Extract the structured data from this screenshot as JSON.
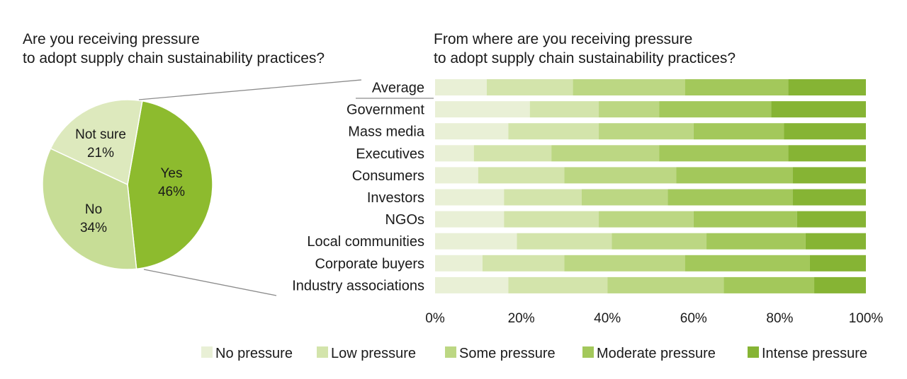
{
  "chart_data": [
    {
      "type": "pie",
      "title_lines": [
        "Are you receiving pressure",
        "to adopt supply chain sustainability practices?"
      ],
      "slices": [
        {
          "label": "Yes",
          "value": 46,
          "value_label": "46%",
          "color": "#8dbb2e"
        },
        {
          "label": "No",
          "value": 34,
          "value_label": "34%",
          "color": "#c7dd96"
        },
        {
          "label": "Not sure",
          "value": 21,
          "value_label": "21%",
          "color": "#dde9bd"
        }
      ]
    },
    {
      "type": "bar",
      "orientation": "horizontal",
      "stacked": true,
      "percent": true,
      "title_lines": [
        "From where are you receiving pressure",
        "to adopt supply chain sustainability practices?"
      ],
      "categories": [
        "Average",
        "Government",
        "Mass media",
        "Executives",
        "Consumers",
        "Investors",
        "NGOs",
        "Local communities",
        "Corporate buyers",
        "Industry associations"
      ],
      "xlim": [
        0,
        100
      ],
      "xticks": [
        0,
        20,
        40,
        60,
        80,
        100
      ],
      "xtick_labels": [
        "0%",
        "20%",
        "40%",
        "60%",
        "80%",
        "100%"
      ],
      "legend_position": "bottom",
      "series": [
        {
          "name": "No pressure",
          "color": "#e9f0d6",
          "values": [
            12,
            22,
            17,
            9,
            10,
            16,
            16,
            19,
            11,
            17
          ]
        },
        {
          "name": "Low pressure",
          "color": "#d3e4ab",
          "values": [
            20,
            16,
            21,
            18,
            20,
            18,
            22,
            22,
            19,
            23
          ]
        },
        {
          "name": "Some pressure",
          "color": "#bcd783",
          "values": [
            26,
            14,
            22,
            25,
            26,
            20,
            22,
            22,
            28,
            27
          ]
        },
        {
          "name": "Moderate pressure",
          "color": "#a3c85b",
          "values": [
            24,
            26,
            21,
            30,
            27,
            29,
            24,
            23,
            29,
            21
          ]
        },
        {
          "name": "Intense pressure",
          "color": "#86b434",
          "values": [
            18,
            22,
            19,
            18,
            17,
            17,
            16,
            14,
            13,
            12
          ]
        }
      ]
    }
  ]
}
